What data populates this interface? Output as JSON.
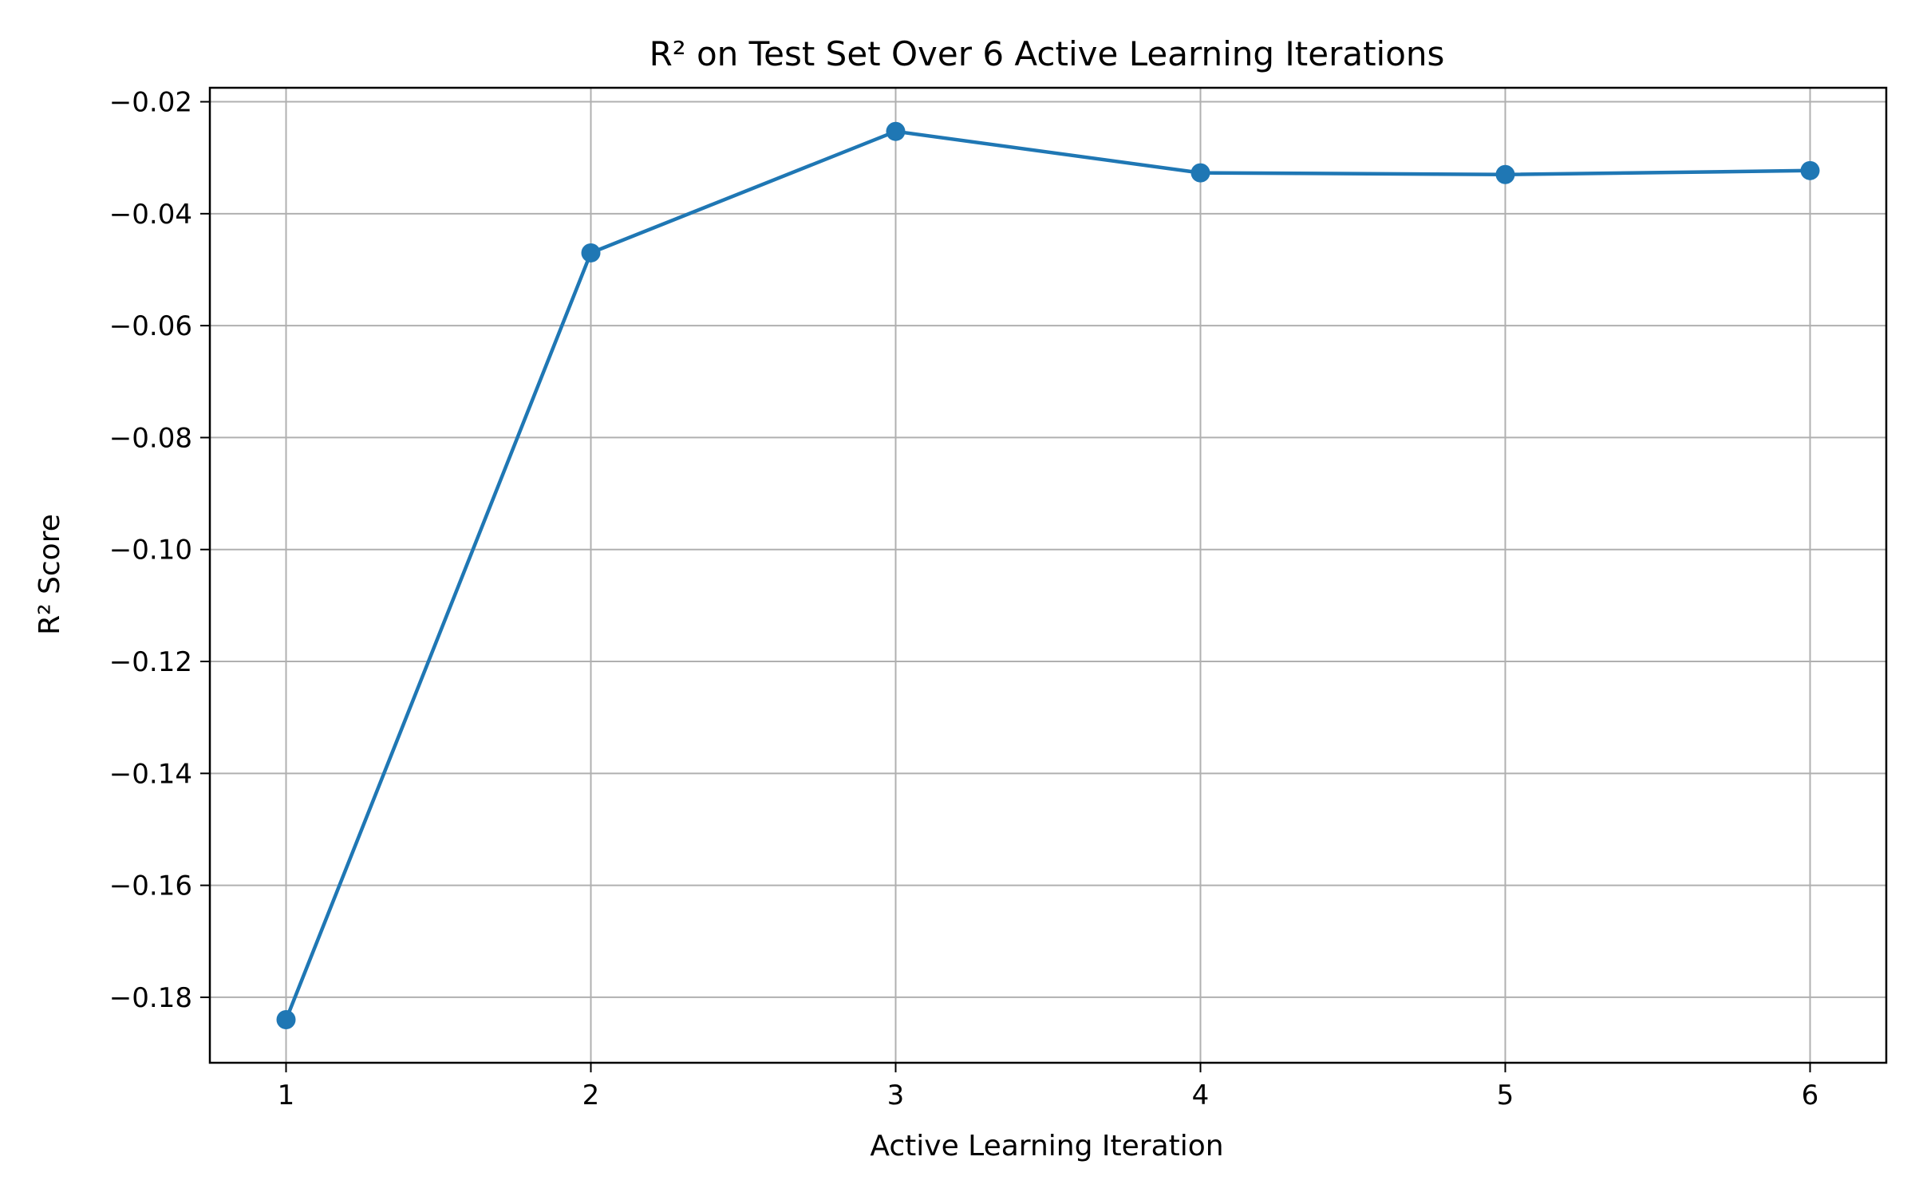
{
  "chart_data": {
    "type": "line",
    "title": "R² on Test Set Over 6 Active Learning Iterations",
    "xlabel": "Active Learning Iteration",
    "ylabel": "R² Score",
    "x": [
      1,
      2,
      3,
      4,
      5,
      6
    ],
    "series": [
      {
        "values": [
          -0.184,
          -0.047,
          -0.0253,
          -0.0327,
          -0.033,
          -0.0323
        ],
        "color": "#1f77b4",
        "marker": "circle"
      }
    ],
    "xlim": [
      0.75,
      6.25
    ],
    "ylim": [
      -0.1917,
      -0.0175
    ],
    "xticks": [
      1,
      2,
      3,
      4,
      5,
      6
    ],
    "xtick_labels": [
      "1",
      "2",
      "3",
      "4",
      "5",
      "6"
    ],
    "yticks": [
      -0.02,
      -0.04,
      -0.06,
      -0.08,
      -0.1,
      -0.12,
      -0.14,
      -0.16,
      -0.18
    ],
    "ytick_labels": [
      "−0.02",
      "−0.04",
      "−0.06",
      "−0.08",
      "−0.10",
      "−0.12",
      "−0.14",
      "−0.16",
      "−0.18"
    ],
    "grid": true,
    "grid_color": "#b0b0b0",
    "legend": false
  }
}
